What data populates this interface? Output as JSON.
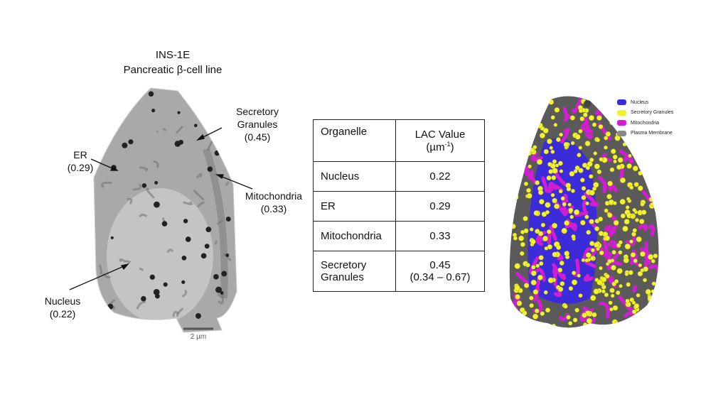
{
  "title": {
    "lines": [
      "INS-1E",
      "Pancreatic β-cell line"
    ]
  },
  "annotations": [
    {
      "lines": [
        "Secretory",
        "Granules",
        "(0.45)"
      ]
    },
    {
      "lines": [
        "ER",
        "(0.29)"
      ]
    },
    {
      "lines": [
        "Mitochondria",
        "(0.33)"
      ]
    },
    {
      "lines": [
        "Nucleus",
        "(0.22)"
      ]
    }
  ],
  "scale_bar": "2 µm",
  "table": {
    "header": {
      "organelle": "Organelle",
      "value": "LAC Value",
      "unit": "µm",
      "exponent": "-1"
    },
    "rows": [
      [
        "Nucleus",
        "0.22"
      ],
      [
        "ER",
        "0.29"
      ],
      [
        "Mitochondria",
        "0.33"
      ],
      [
        [
          "Secretory",
          "Granules"
        ],
        [
          "0.45",
          "(0.34 – 0.67)"
        ]
      ]
    ]
  },
  "legend": [
    {
      "name": "Nucleus",
      "color": "#3b2bd9"
    },
    {
      "name": "Secretory Granules",
      "color": "#f2f230"
    },
    {
      "name": "Mitochondria",
      "color": "#d21ed2"
    },
    {
      "name": "Plasma Membrane",
      "color": "#8a8a8a"
    }
  ]
}
